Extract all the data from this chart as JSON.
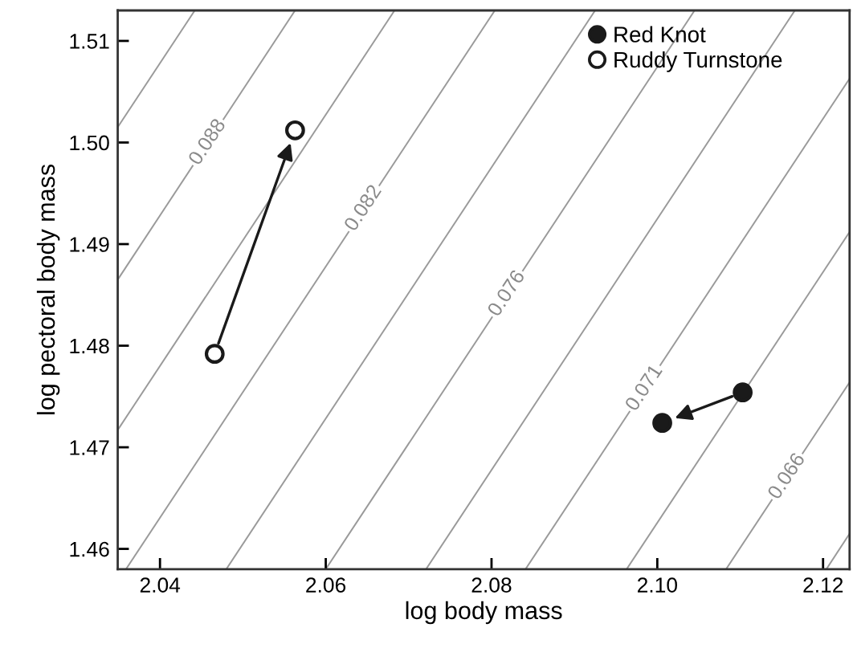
{
  "chart_data": {
    "type": "scatter",
    "xlabel": "log body mass",
    "ylabel": "log pectoral body mass",
    "xlim": [
      2.0349,
      2.1232
    ],
    "ylim": [
      1.458,
      1.513
    ],
    "xticks": [
      2.04,
      2.06,
      2.08,
      {
        "value": 2.1,
        "label": "2.10"
      },
      2.12
    ],
    "yticks": [
      1.46,
      1.47,
      1.48,
      1.49,
      {
        "value": 1.5,
        "label": "1.50"
      },
      1.51
    ],
    "grid": false,
    "legend": "top right",
    "marker": "circle",
    "series": [
      {
        "name": "Red Knot",
        "color": "#1a1a1a",
        "x": [
          2.1103,
          2.1006
        ],
        "values": [
          1.4754,
          1.4724
        ]
      },
      {
        "name": "Ruddy Turnstone",
        "color": "#ffffff",
        "x": [
          2.0466,
          2.0563
        ],
        "values": [
          1.4792,
          1.5012
        ]
      },
      {
        "type": "line",
        "marker": "none",
        "color": "#9a9a9a",
        "x": [
          2.0349,
          2.0442
        ],
        "values": [
          1.5015,
          1.513
        ]
      },
      {
        "type": "line",
        "marker": "none",
        "color": "#9a9a9a",
        "x": [
          2.0349,
          2.0563
        ],
        "values": [
          1.4865,
          1.513
        ]
      },
      {
        "type": "line",
        "marker": "none",
        "color": "#9a9a9a",
        "x": [
          2.0349,
          2.0683
        ],
        "values": [
          1.4717,
          1.513
        ]
      },
      {
        "type": "line",
        "marker": "none",
        "color": "#9a9a9a",
        "x": [
          2.0359,
          2.0804
        ],
        "values": [
          1.458,
          1.513
        ]
      },
      {
        "type": "line",
        "marker": "none",
        "color": "#9a9a9a",
        "x": [
          2.048,
          2.0925
        ],
        "values": [
          1.458,
          1.513
        ]
      },
      {
        "type": "line",
        "marker": "none",
        "color": "#9a9a9a",
        "x": [
          2.06,
          2.1045
        ],
        "values": [
          1.458,
          1.513
        ]
      },
      {
        "type": "line",
        "marker": "none",
        "color": "#9a9a9a",
        "x": [
          2.0721,
          2.1166
        ],
        "values": [
          1.458,
          1.513
        ]
      },
      {
        "type": "line",
        "marker": "none",
        "color": "#9a9a9a",
        "x": [
          2.0841,
          2.1232
        ],
        "values": [
          1.458,
          1.5063
        ]
      },
      {
        "type": "line",
        "marker": "none",
        "color": "#9a9a9a",
        "x": [
          2.0963,
          2.1232
        ],
        "values": [
          1.458,
          1.4912
        ]
      },
      {
        "type": "line",
        "marker": "none",
        "color": "#9a9a9a",
        "x": [
          2.1083,
          2.1232
        ],
        "values": [
          1.458,
          1.4764
        ]
      },
      {
        "type": "line",
        "marker": "none",
        "color": "#9a9a9a",
        "x": [
          2.1204,
          2.1232
        ],
        "values": [
          1.458,
          1.4615
        ]
      }
    ],
    "annotations": [
      {
        "text": "0.088",
        "x": 2.0458,
        "y": 1.5
      },
      {
        "text": "0.082",
        "x": 2.0646,
        "y": 1.4935
      },
      {
        "text": "0.076",
        "x": 2.0819,
        "y": 1.4851
      },
      {
        "text": "0.071",
        "x": 2.0985,
        "y": 1.4758
      },
      {
        "text": "0.066",
        "x": 2.1157,
        "y": 1.4671
      }
    ]
  }
}
